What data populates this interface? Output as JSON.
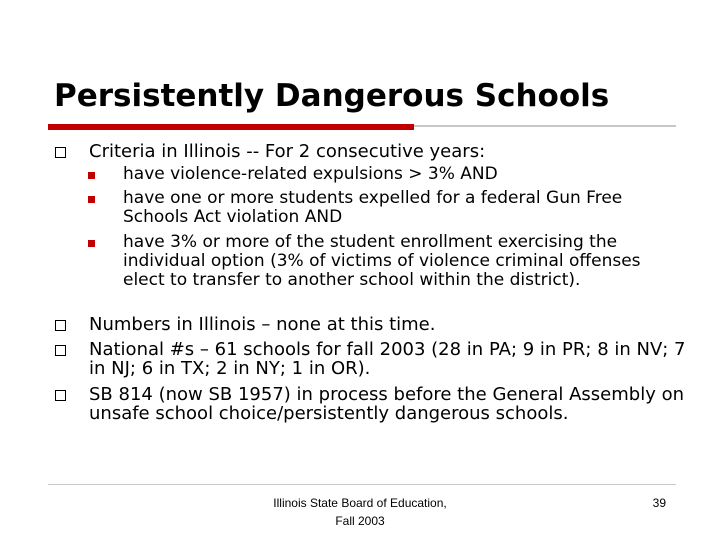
{
  "slide": {
    "title": "Persistently Dangerous Schools",
    "bullets": [
      {
        "text": "Criteria in Illinois -- For 2 consecutive years:",
        "subitems": [
          {
            "text": "have violence-related expulsions > 3% AND"
          },
          {
            "text": "have one or more students expelled for a federal Gun Free Schools Act violation AND"
          },
          {
            "text": "have 3% or more of the student enrollment exercising the individual option (3% of victims of violence criminal offenses elect to transfer to another school within the district)."
          }
        ]
      },
      {
        "text": "Numbers in Illinois – none at this time."
      },
      {
        "text": "National #s – 61 schools for fall 2003 (28 in PA; 9 in PR; 8 in NV; 7 in NJ; 6 in TX; 2 in NY; 1 in OR)."
      },
      {
        "text": "SB 814 (now SB 1957) in process before the General Assembly on unsafe school choice/persistently dangerous schools."
      }
    ]
  },
  "footer": {
    "line1": "Illinois State Board of Education,",
    "line2": "Fall 2003",
    "page_number": "39"
  },
  "colors": {
    "accent_red": "#c00000",
    "rule_gray": "#c8c8c8"
  },
  "icons": {
    "level1_bullet": "hollow-square-bullet-icon",
    "level2_bullet": "red-square-bullet-icon"
  }
}
